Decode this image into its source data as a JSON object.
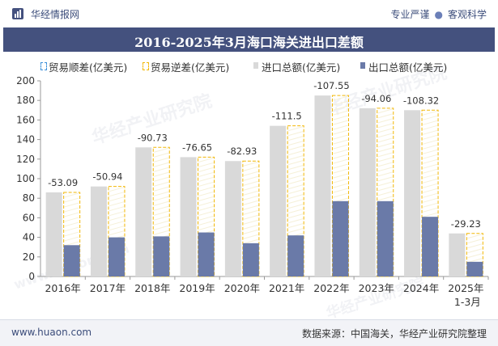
{
  "header": {
    "brand": "华经情报网",
    "tagline_1": "专业严谨",
    "tagline_2": "客观科学",
    "title": "2016-2025年3月海口海关进出口差额"
  },
  "footer": {
    "website": "www.huaon.com",
    "source": "数据来源：中国海关，华经产业研究院整理"
  },
  "watermarks": {
    "cn": "华经产业研究院",
    "url": "www.huaon.com"
  },
  "colors": {
    "import": "#d9d9d9",
    "export": "#6a7aa8",
    "deficit_outline": "#f2b705",
    "surplus_outline": "#3b8fd9",
    "title_bar": "#44517e",
    "axis": "#999999",
    "deficit_label": "#333333"
  },
  "chart_data": {
    "type": "bar",
    "title": "2016-2025年3月海口海关进出口差额",
    "categories": [
      "2016年",
      "2017年",
      "2018年",
      "2019年",
      "2020年",
      "2021年",
      "2022年",
      "2023年",
      "2024年",
      "2025年"
    ],
    "category_sublabels": [
      "",
      "",
      "",
      "",
      "",
      "",
      "",
      "",
      "",
      "1-3月"
    ],
    "ylim": [
      0,
      200
    ],
    "yticks": [
      0,
      20,
      40,
      60,
      80,
      100,
      120,
      140,
      160,
      180,
      200
    ],
    "legend_position": "top",
    "series": [
      {
        "name": "贸易顺差(亿美元)",
        "values": [
          null,
          null,
          null,
          null,
          null,
          null,
          null,
          null,
          null,
          null
        ]
      },
      {
        "name": "贸易逆差(亿美元)",
        "values": [
          -53.09,
          -50.94,
          -90.73,
          -76.65,
          -82.93,
          -111.5,
          -107.55,
          -94.06,
          -108.32,
          -29.23
        ]
      },
      {
        "name": "进口总额(亿美元)",
        "values": [
          86,
          92,
          132,
          122,
          118,
          154,
          185,
          172,
          170,
          44
        ]
      },
      {
        "name": "出口总额(亿美元)",
        "values": [
          32,
          40,
          41,
          45,
          34,
          42,
          77,
          77,
          61,
          15
        ]
      }
    ],
    "data_labels": [
      "-53.09",
      "-50.94",
      "-90.73",
      "-76.65",
      "-82.93",
      "-111.5",
      "-107.55",
      "-94.06",
      "-108.32",
      "-29.23"
    ]
  }
}
